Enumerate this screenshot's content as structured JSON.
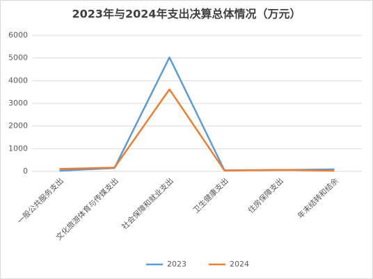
{
  "chart_data": {
    "type": "line",
    "title": "2023年与2024年支出决算总体情况（万元）",
    "categories": [
      "一般公共服务支出",
      "文化旅游体育与传媒支出",
      "社会保障和就业支出",
      "卫生健康支出",
      "住房保障支出",
      "年末结转和结余"
    ],
    "series": [
      {
        "name": "2023",
        "color": "#5b9bd5",
        "values": [
          30,
          150,
          5030,
          50,
          60,
          90
        ]
      },
      {
        "name": "2024",
        "color": "#ed7d31",
        "values": [
          110,
          170,
          3620,
          40,
          70,
          30
        ]
      }
    ],
    "ylim": [
      0,
      6000
    ],
    "yticks": [
      0,
      1000,
      2000,
      3000,
      4000,
      5000,
      6000
    ],
    "grid": true,
    "legend": "bottom"
  }
}
